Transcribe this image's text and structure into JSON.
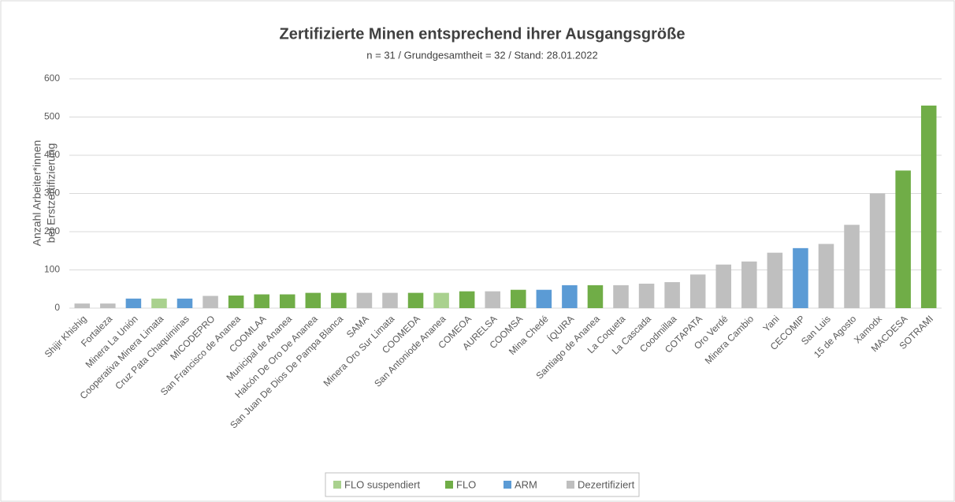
{
  "chart_data": {
    "type": "bar",
    "title": "Zertifizierte Minen entsprechend ihrer Ausgangsgröße",
    "subtitle": "n = 31 / Grundgesamtheit  = 32 / Stand:  28.01.2022",
    "y_label": [
      "Anzahl Arbeiter*innen",
      "bei Erstzertifizierung"
    ],
    "categories": [
      "Shijir Khishig",
      "Fortaleza",
      "Minera La Unión",
      "Cooperativa Minera Limata",
      "Cruz Pata Chaquiminas",
      "MICODEPRO",
      "San Francisco de Ananea",
      "COOMLAA",
      "Municipal de Ananea",
      "Halcón De Oro De Ananea",
      "San Juan De Dios De Pampa Blanca",
      "SAMA",
      "Minera Oro Sur Limata",
      "COOMEDA",
      "San Antoniode Ananea",
      "COMEOA",
      "AURELSA",
      "COOMSA",
      "Mina Chedé",
      "ÍQUIRA",
      "Santiago de Ananea",
      "La Coqueta",
      "La Cascada",
      "Coodmillaa",
      "COTAPATA",
      "Oro Verdé",
      "Minera Cambio",
      "Yani",
      "CECOMIP",
      "San Luis",
      "15 de Agosto",
      "Xamodx",
      "MACDESA",
      "SOTRAMI"
    ],
    "series": [
      {
        "name": "FLO suspendiert",
        "color": "#a9d18e",
        "values": [
          null,
          null,
          null,
          25,
          null,
          null,
          null,
          null,
          null,
          null,
          null,
          null,
          null,
          null,
          40,
          null,
          null,
          null,
          null,
          null,
          null,
          null,
          null,
          null,
          null,
          null,
          null,
          null,
          null,
          null,
          null,
          null,
          null,
          null
        ]
      },
      {
        "name": "FLO",
        "color": "#70ad47",
        "values": [
          null,
          null,
          null,
          null,
          null,
          null,
          33,
          36,
          36,
          40,
          40,
          null,
          null,
          40,
          null,
          44,
          null,
          48,
          null,
          null,
          60,
          null,
          null,
          null,
          null,
          null,
          null,
          null,
          null,
          null,
          null,
          null,
          360,
          530
        ]
      },
      {
        "name": "ARM",
        "color": "#5b9bd5",
        "values": [
          null,
          null,
          25,
          null,
          25,
          null,
          null,
          null,
          null,
          null,
          null,
          null,
          null,
          null,
          null,
          null,
          null,
          null,
          48,
          60,
          null,
          null,
          null,
          null,
          null,
          null,
          null,
          null,
          157,
          null,
          null,
          null,
          null,
          null
        ]
      },
      {
        "name": "Dezertifiziert",
        "color": "#bfbfbf",
        "values": [
          12,
          12,
          null,
          null,
          null,
          32,
          null,
          null,
          null,
          null,
          null,
          40,
          40,
          null,
          null,
          null,
          44,
          null,
          null,
          null,
          null,
          60,
          64,
          68,
          88,
          114,
          122,
          145,
          null,
          168,
          218,
          300,
          null,
          null
        ]
      }
    ],
    "ylim": [
      0,
      600
    ],
    "yticks": [
      0,
      100,
      200,
      300,
      400,
      500,
      600
    ],
    "grid": true,
    "legend": "bottom"
  }
}
